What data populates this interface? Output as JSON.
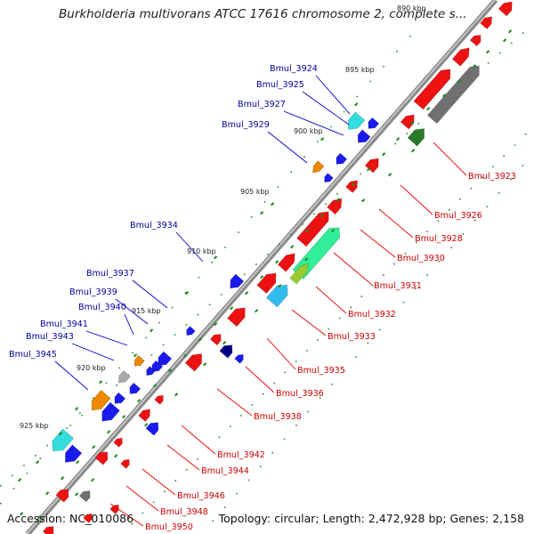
{
  "title": "Burkholderia multivorans ATCC 17616 chromosome 2, complete s...",
  "accession": "Accession: NC_010086",
  "topology": "Topology: circular; Length: 2,472,928 bp; Genes: 2,158",
  "colors": {
    "forward": "#ff0000",
    "reverse": "#0000ee",
    "backbone": "#888888",
    "tick": "#22aa22",
    "label_left": "#000099",
    "label_right": "#cc0000",
    "leader_left": "#0000cc",
    "leader_right": "#ee0000"
  },
  "kbp_markers": [
    "890 kbp",
    "895 kbp",
    "900 kbp",
    "905 kbp",
    "910 kbp",
    "915 kbp",
    "920 kbp",
    "925 kbp"
  ],
  "labels_left": [
    "Bmul_3924",
    "Bmul_3925",
    "Bmul_3927",
    "Bmul_3929",
    "Bmul_3934",
    "Bmul_3937",
    "Bmul_3939",
    "Bmul_3940",
    "Bmul_3941",
    "Bmul_3943",
    "Bmul_3945"
  ],
  "labels_right": [
    "Bmul_3923",
    "Bmul_3926",
    "Bmul_3928",
    "Bmul_3930",
    "Bmul_3931",
    "Bmul_3932",
    "Bmul_3933",
    "Bmul_3935",
    "Bmul_3936",
    "Bmul_3938",
    "Bmul_3942",
    "Bmul_3944",
    "Bmul_3946",
    "Bmul_3948",
    "Bmul_3950"
  ]
}
